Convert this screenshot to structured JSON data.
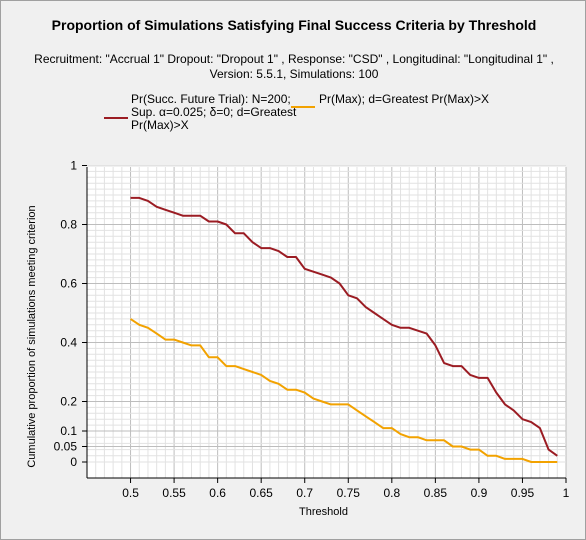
{
  "title": "Proportion of Simulations Satisfying Final Success Criteria by Threshold",
  "subtitle": "Recruitment: \"Accrual 1\" Dropout: \"Dropout 1\" , Response: \"CSD\" , Longitudinal: \"Longitudinal 1\" , Version: 5.5.1, Simulations: 100",
  "chart_data": {
    "type": "line",
    "title": "Proportion of Simulations Satisfying Final Success Criteria by Threshold",
    "xlabel": "Threshold",
    "ylabel": "Cumulative proportion of simulations meeting criterion",
    "xlim": [
      0.45,
      1.0
    ],
    "ylim": [
      0,
      1
    ],
    "x_ticks": [
      "0.5",
      "0.55",
      "0.6",
      "0.65",
      "0.7",
      "0.75",
      "0.8",
      "0.85",
      "0.9",
      "0.95",
      "1"
    ],
    "y_ticks": [
      "0",
      "0.05",
      "0.1",
      "0.2",
      "0.4",
      "0.6",
      "0.8",
      "1"
    ],
    "grid": true,
    "legend_position": "top",
    "x": [
      0.5,
      0.51,
      0.52,
      0.53,
      0.54,
      0.55,
      0.56,
      0.57,
      0.58,
      0.59,
      0.6,
      0.61,
      0.62,
      0.63,
      0.64,
      0.65,
      0.66,
      0.67,
      0.68,
      0.69,
      0.7,
      0.71,
      0.72,
      0.73,
      0.74,
      0.75,
      0.76,
      0.77,
      0.78,
      0.79,
      0.8,
      0.81,
      0.82,
      0.83,
      0.84,
      0.85,
      0.86,
      0.87,
      0.88,
      0.89,
      0.9,
      0.91,
      0.92,
      0.93,
      0.94,
      0.95,
      0.96,
      0.97,
      0.98,
      0.99
    ],
    "series": [
      {
        "name": "Pr(Succ. Future Trial): N=200; Sup. α=0.025; δ=0; d=Greatest Pr(Max)>X",
        "color": "#9b1c23",
        "legend_lines": [
          "Pr(Succ. Future Trial): N=200;",
          "Sup. α=0.025; δ=0; d=Greatest",
          "Pr(Max)>X"
        ],
        "values": [
          0.89,
          0.89,
          0.88,
          0.86,
          0.85,
          0.84,
          0.83,
          0.83,
          0.83,
          0.81,
          0.81,
          0.8,
          0.77,
          0.77,
          0.74,
          0.72,
          0.72,
          0.71,
          0.69,
          0.69,
          0.65,
          0.64,
          0.63,
          0.62,
          0.6,
          0.56,
          0.55,
          0.52,
          0.5,
          0.48,
          0.46,
          0.45,
          0.45,
          0.44,
          0.43,
          0.39,
          0.33,
          0.32,
          0.32,
          0.29,
          0.28,
          0.28,
          0.23,
          0.19,
          0.17,
          0.14,
          0.13,
          0.11,
          0.04,
          0.02
        ]
      },
      {
        "name": "Pr(Max); d=Greatest Pr(Max)>X",
        "color": "#f2a200",
        "legend_lines": [
          "Pr(Max); d=Greatest Pr(Max)>X"
        ],
        "values": [
          0.48,
          0.46,
          0.45,
          0.43,
          0.41,
          0.41,
          0.4,
          0.39,
          0.39,
          0.35,
          0.35,
          0.32,
          0.32,
          0.31,
          0.3,
          0.29,
          0.27,
          0.26,
          0.24,
          0.24,
          0.23,
          0.21,
          0.2,
          0.19,
          0.19,
          0.19,
          0.17,
          0.15,
          0.13,
          0.11,
          0.11,
          0.09,
          0.08,
          0.08,
          0.07,
          0.07,
          0.07,
          0.05,
          0.05,
          0.04,
          0.04,
          0.02,
          0.02,
          0.01,
          0.01,
          0.01,
          0.0,
          0.0,
          0.0,
          0.0
        ]
      }
    ]
  }
}
